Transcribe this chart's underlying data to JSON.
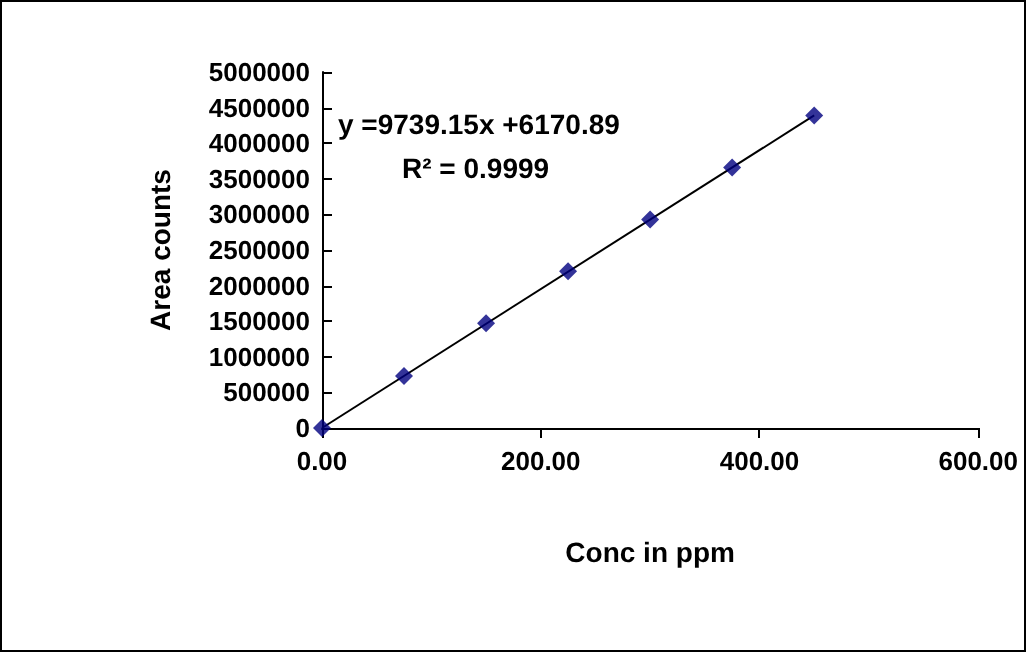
{
  "chart_data": {
    "type": "scatter",
    "xlabel": "Conc in ppm",
    "ylabel": "Area counts",
    "x": [
      0,
      75,
      150,
      225,
      300,
      375,
      450
    ],
    "series": [
      {
        "color": "#000080",
        "marker": "diamond",
        "values": [
          0,
          730000,
          1470000,
          2200000,
          2930000,
          3660000,
          4390000
        ]
      },
      {
        "type": "line",
        "color": "#000000",
        "x": [
          0,
          450
        ],
        "values": [
          0,
          4390000
        ]
      }
    ],
    "xlim": [
      0,
      600
    ],
    "xticks": [
      {
        "value": 0,
        "label": "0.00"
      },
      {
        "value": 200,
        "label": "200.00"
      },
      {
        "value": 400,
        "label": "400.00"
      },
      {
        "value": 600,
        "label": "600.00"
      }
    ],
    "ylim": [
      0,
      5000000
    ],
    "yticks": [
      0,
      500000,
      1000000,
      1500000,
      2000000,
      2500000,
      3000000,
      3500000,
      4000000,
      4500000,
      5000000
    ],
    "annotations": [
      "y =9739.15x +6170.89",
      "R² = 0.9999"
    ],
    "grid": false
  }
}
